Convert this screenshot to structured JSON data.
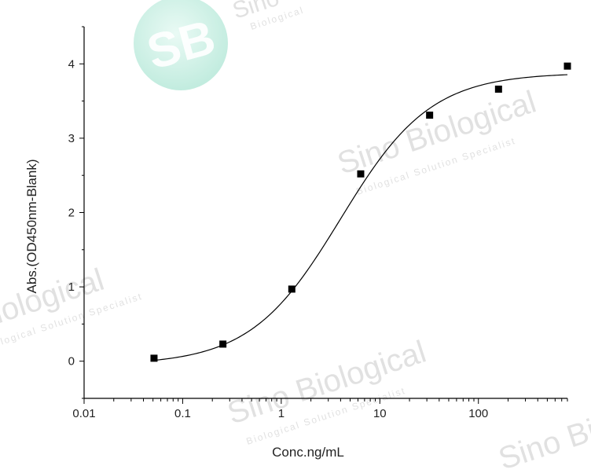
{
  "chart_data": {
    "type": "scatter",
    "xlabel": "Conc.ng/mL",
    "ylabel": "Abs.(OD450nm-Blank)",
    "xscale": "log",
    "xlim": [
      0.01,
      800
    ],
    "ylim": [
      -0.5,
      4.5
    ],
    "x_ticks": [
      0.01,
      0.1,
      1,
      10,
      100
    ],
    "x_tick_labels": [
      "0.01",
      "0.1",
      "1",
      "10",
      "100"
    ],
    "y_ticks": [
      0,
      1,
      2,
      3,
      4
    ],
    "y_tick_labels": [
      "0",
      "1",
      "2",
      "3",
      "4"
    ],
    "grid": false,
    "legend": "none",
    "series": [
      {
        "marker": "square",
        "x": [
          0.0512,
          0.256,
          1.28,
          6.4,
          32,
          160,
          800
        ],
        "y": [
          0.04,
          0.23,
          0.97,
          2.52,
          3.31,
          3.66,
          3.97
        ]
      }
    ],
    "fit_curve": {
      "model": "4PL",
      "bottom": -0.05,
      "top": 3.88,
      "ec50": 4.0,
      "hill": 0.95
    },
    "colors": {
      "marker": "#000000",
      "line": "#000000",
      "axis": "#000000",
      "watermark": "#c8c8c8",
      "logo": "#8fdcc4"
    },
    "watermark": {
      "brand": "Sino Biological",
      "tagline": "Biological Solution Specialist",
      "logo_text": "SB",
      "fragment_left": "Biological",
      "fragment_top_right": "Sino",
      "fragment_bottom_right": "Sino Bi"
    }
  }
}
